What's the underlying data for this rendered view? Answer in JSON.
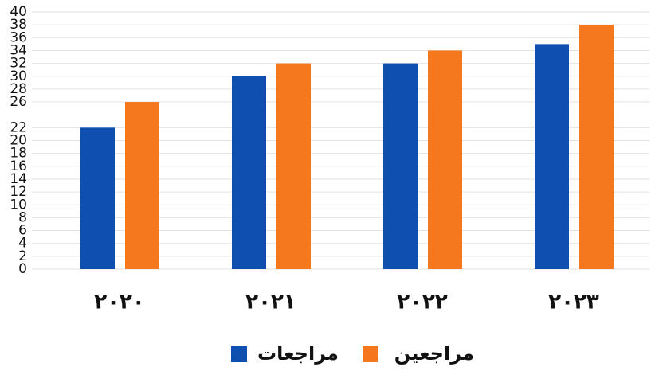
{
  "chart_data": {
    "type": "bar",
    "categories": [
      "٢٠٢٠",
      "٢٠٢١",
      "٢٠٢٢",
      "٢٠٢٣"
    ],
    "series": [
      {
        "name": "مراجعات",
        "color": "#0f4fb0",
        "values": [
          22,
          30,
          32,
          35
        ]
      },
      {
        "name": "مراجعين",
        "color": "#f5781e",
        "values": [
          26,
          32,
          34,
          38
        ]
      }
    ],
    "ylim": [
      0,
      40
    ],
    "yticks": [
      0,
      2,
      4,
      6,
      8,
      10,
      12,
      14,
      16,
      18,
      20,
      22,
      26,
      28,
      30,
      32,
      34,
      36,
      38,
      40
    ],
    "grid": true
  }
}
